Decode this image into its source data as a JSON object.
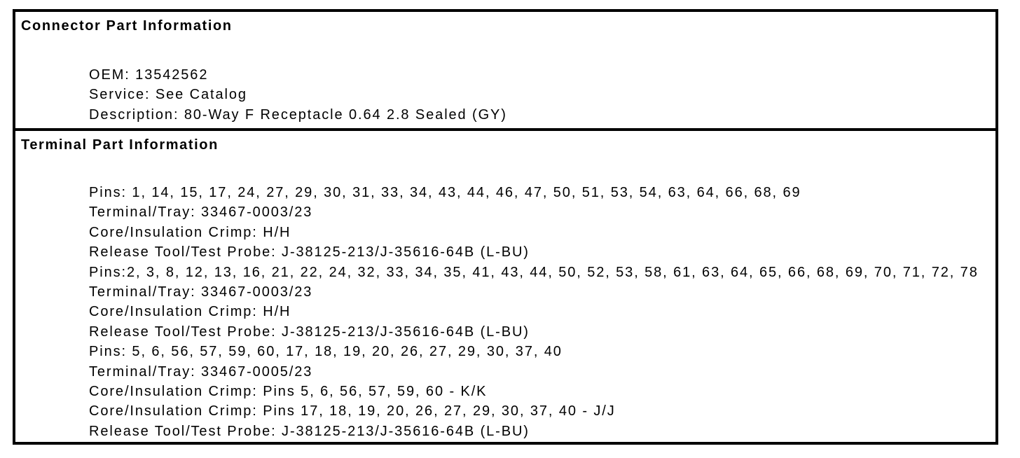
{
  "connector": {
    "title": "Connector Part Information",
    "lines": [
      "OEM: 13542562",
      "Service: See Catalog",
      "Description: 80-Way F Receptacle 0.64 2.8 Sealed (GY)"
    ]
  },
  "terminal": {
    "title": "Terminal Part Information",
    "lines": [
      "Pins: 1, 14, 15, 17, 24, 27, 29, 30, 31, 33, 34, 43, 44, 46, 47, 50, 51, 53, 54, 63, 64, 66, 68, 69",
      "Terminal/Tray: 33467-0003/23",
      "Core/Insulation Crimp: H/H",
      "Release Tool/Test Probe: J-38125-213/J-35616-64B (L-BU)",
      "Pins:2, 3, 8, 12, 13, 16, 21, 22, 24, 32, 33, 34, 35, 41, 43, 44, 50, 52, 53, 58, 61, 63, 64, 65, 66, 68, 69, 70, 71, 72, 78",
      "Terminal/Tray: 33467-0003/23",
      "Core/Insulation Crimp: H/H",
      "Release Tool/Test Probe: J-38125-213/J-35616-64B (L-BU)",
      "Pins: 5, 6, 56, 57, 59, 60, 17, 18, 19, 20, 26, 27, 29, 30, 37, 40",
      "Terminal/Tray: 33467-0005/23",
      "Core/Insulation Crimp: Pins 5, 6, 56, 57, 59, 60 - K/K",
      "Core/Insulation Crimp: Pins 17, 18, 19, 20, 26, 27, 29, 30, 37, 40 - J/J",
      "Release Tool/Test Probe: J-38125-213/J-35616-64B (L-BU)"
    ]
  }
}
